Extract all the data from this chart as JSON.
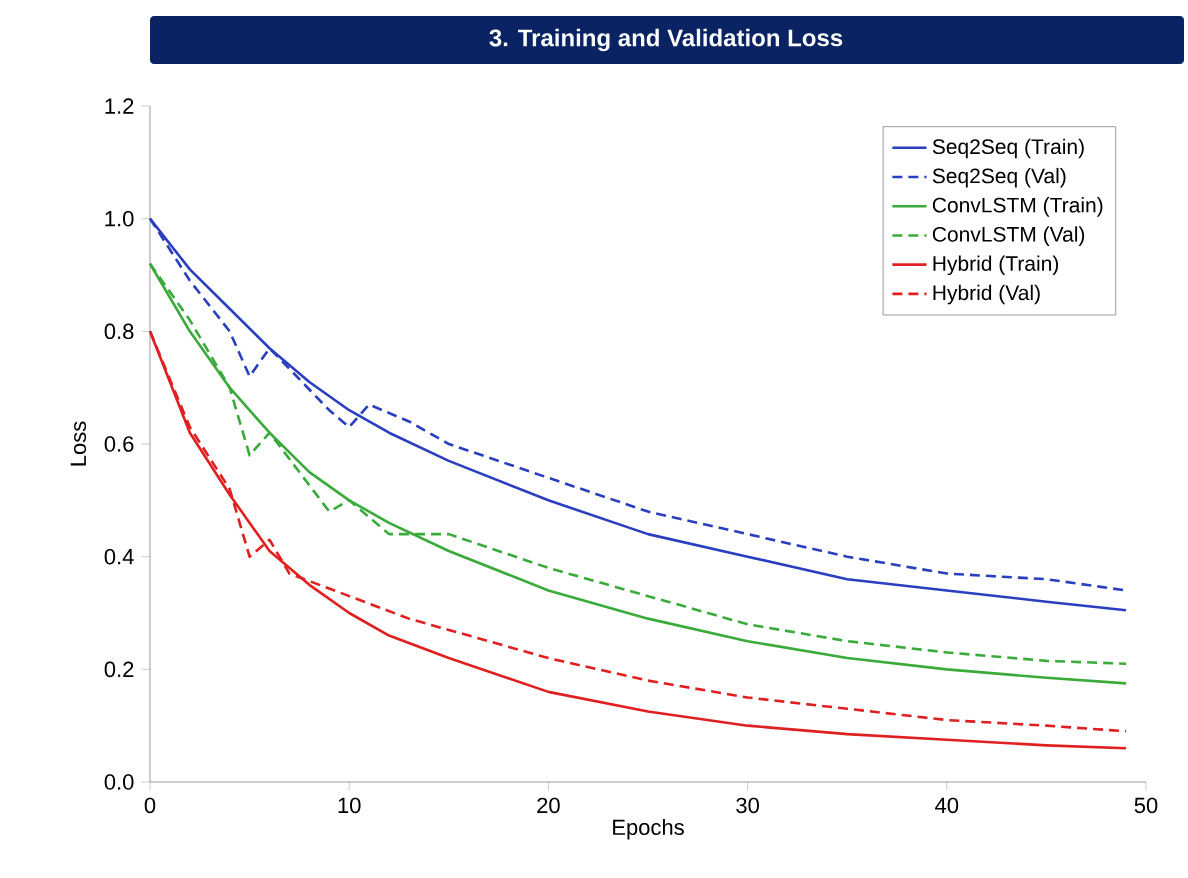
{
  "chart_data": {
    "type": "line",
    "title": "3. Training and Validation Loss",
    "xlabel": "Epochs",
    "ylabel": "Loss",
    "xlim": [
      0,
      50
    ],
    "ylim": [
      0,
      1.2
    ],
    "xticks": [
      0,
      10,
      20,
      30,
      40,
      50
    ],
    "yticks": [
      {
        "value": 0,
        "label": "0.0"
      },
      {
        "value": 0.2,
        "label": "0.2"
      },
      {
        "value": 0.4,
        "label": "0.4"
      },
      {
        "value": 0.6,
        "label": "0.6"
      },
      {
        "value": 0.8,
        "label": "0.8"
      },
      {
        "value": 1.0,
        "label": "1.0"
      },
      {
        "value": 1.2,
        "label": "1.2"
      }
    ],
    "grid": false,
    "legend": "top right",
    "series": [
      {
        "name": "Seq2Seq (Train)",
        "color": "#2a3fbf",
        "line_style": "solid",
        "x": [
          0,
          2,
          4,
          6,
          8,
          10,
          12,
          15,
          20,
          25,
          30,
          35,
          40,
          45,
          49
        ],
        "values": [
          1.0,
          0.91,
          0.84,
          0.77,
          0.71,
          0.66,
          0.62,
          0.57,
          0.5,
          0.44,
          0.4,
          0.36,
          0.34,
          0.32,
          0.305
        ]
      },
      {
        "name": "Seq2Seq (Val)",
        "color": "#2a3fbf",
        "line_style": "dashed",
        "x": [
          0,
          2,
          4,
          5,
          6,
          9,
          10,
          11,
          13,
          15,
          20,
          25,
          30,
          35,
          40,
          45,
          49
        ],
        "values": [
          1.0,
          0.89,
          0.8,
          0.72,
          0.77,
          0.66,
          0.63,
          0.67,
          0.64,
          0.6,
          0.54,
          0.48,
          0.44,
          0.4,
          0.37,
          0.36,
          0.34
        ]
      },
      {
        "name": "ConvLSTM (Train)",
        "color": "#3aaa3a",
        "line_style": "solid",
        "x": [
          0,
          2,
          4,
          6,
          8,
          10,
          12,
          15,
          20,
          25,
          30,
          35,
          40,
          45,
          49
        ],
        "values": [
          0.92,
          0.8,
          0.7,
          0.62,
          0.55,
          0.5,
          0.46,
          0.41,
          0.34,
          0.29,
          0.25,
          0.22,
          0.2,
          0.185,
          0.175
        ]
      },
      {
        "name": "ConvLSTM (Val)",
        "color": "#3aaa3a",
        "line_style": "dashed",
        "x": [
          0,
          2,
          4,
          5,
          6,
          9,
          10,
          12,
          15,
          20,
          25,
          30,
          35,
          40,
          45,
          49
        ],
        "values": [
          0.92,
          0.82,
          0.7,
          0.58,
          0.62,
          0.48,
          0.5,
          0.44,
          0.44,
          0.38,
          0.33,
          0.28,
          0.25,
          0.23,
          0.215,
          0.21
        ]
      },
      {
        "name": "Hybrid (Train)",
        "color": "#e02020",
        "line_style": "solid",
        "x": [
          0,
          2,
          4,
          6,
          8,
          10,
          12,
          15,
          20,
          25,
          30,
          35,
          40,
          45,
          49
        ],
        "values": [
          0.8,
          0.62,
          0.51,
          0.41,
          0.35,
          0.3,
          0.26,
          0.22,
          0.16,
          0.125,
          0.1,
          0.085,
          0.075,
          0.065,
          0.06
        ]
      },
      {
        "name": "Hybrid (Val)",
        "color": "#e02020",
        "line_style": "dashed",
        "x": [
          0,
          2,
          4,
          5,
          6,
          7,
          10,
          13,
          15,
          20,
          25,
          30,
          35,
          40,
          45,
          49
        ],
        "values": [
          0.8,
          0.63,
          0.52,
          0.4,
          0.43,
          0.37,
          0.33,
          0.29,
          0.27,
          0.22,
          0.18,
          0.15,
          0.13,
          0.11,
          0.1,
          0.09
        ]
      }
    ]
  }
}
